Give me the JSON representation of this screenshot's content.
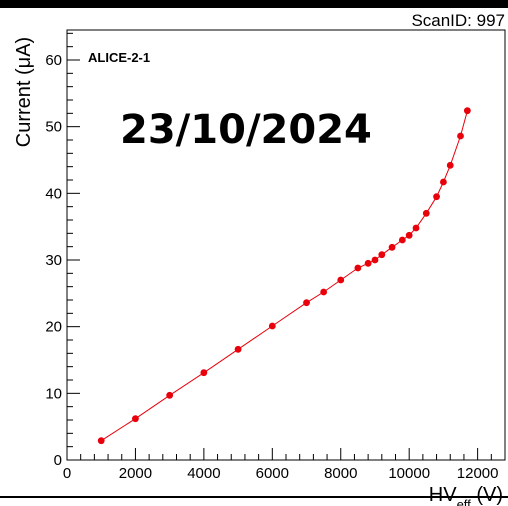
{
  "scan_id": "ScanID: 997",
  "date_stamp": "23/10/2024",
  "chart_data": {
    "type": "scatter",
    "line": true,
    "marker_color": "#e8000b",
    "label": "ALICE-2-1",
    "xlabel_main": "HV",
    "xlabel_sub": "eff",
    "xlabel_unit": " (V)",
    "ylabel": "Current (μA)",
    "xlim": [
      0,
      12800
    ],
    "ylim": [
      0,
      64.5
    ],
    "x_ticks": [
      0,
      2000,
      4000,
      6000,
      8000,
      10000,
      12000
    ],
    "y_ticks": [
      0,
      10,
      20,
      30,
      40,
      50,
      60
    ],
    "x": [
      1000,
      2000,
      3000,
      4000,
      5000,
      6000,
      7000,
      7500,
      8000,
      8500,
      8800,
      9000,
      9200,
      9500,
      9800,
      10000,
      10200,
      10500,
      10800,
      11000,
      11200,
      11500,
      11700
    ],
    "y": [
      2.9,
      6.2,
      9.7,
      13.1,
      16.6,
      20.1,
      23.6,
      25.2,
      27.0,
      28.8,
      29.5,
      30.0,
      30.8,
      31.9,
      33.0,
      33.7,
      34.8,
      37.0,
      39.5,
      41.7,
      44.2,
      48.6,
      52.4
    ]
  }
}
